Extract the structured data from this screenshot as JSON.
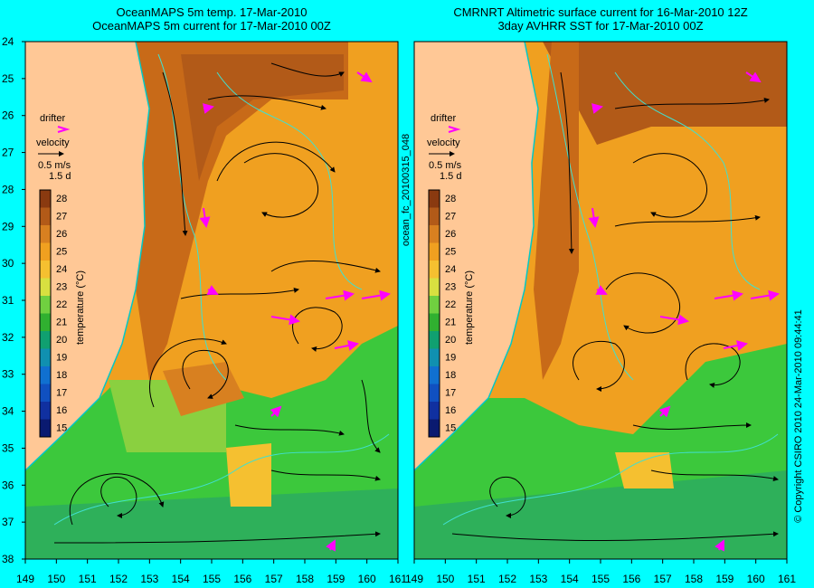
{
  "left_panel": {
    "title_line1": "OceanMAPS 5m temp. 17-Mar-2010",
    "title_line2": "OceanMAPS 5m current for 17-Mar-2010 00Z"
  },
  "right_panel": {
    "title_line1": "CMRNRT Altimetric surface current for 16-Mar-2010 12Z",
    "title_line2": "3day AVHRR SST for 17-Mar-2010 00Z"
  },
  "legend": {
    "drifter_label": "drifter",
    "velocity_label": "velocity",
    "speed_label": "0.5 m/s",
    "duration_label": "1.5 d",
    "colorbar_title": "temperature (°C)",
    "colorbar_ticks": [
      "28",
      "27",
      "26",
      "25",
      "24",
      "23",
      "22",
      "21",
      "20",
      "19",
      "18",
      "17",
      "16",
      "15"
    ],
    "colorbar_colors": [
      "#8a3a10",
      "#b25a18",
      "#d88020",
      "#f0a020",
      "#f5c030",
      "#d8e040",
      "#70d040",
      "#30b030",
      "#10a070",
      "#1090b0",
      "#1070d0",
      "#1050c0",
      "#1030a0",
      "#0a1a70"
    ]
  },
  "axes": {
    "lat_ticks": [
      "24",
      "25",
      "26",
      "27",
      "28",
      "29",
      "30",
      "31",
      "32",
      "33",
      "34",
      "35",
      "36",
      "37",
      "38"
    ],
    "lon_ticks": [
      "149",
      "150",
      "151",
      "152",
      "153",
      "154",
      "155",
      "156",
      "157",
      "158",
      "159",
      "160",
      "161"
    ]
  },
  "side_labels": {
    "file_id": "ocean_fc_20100315_048",
    "copyright": "© Copyright CSIRO 2010   24-Mar-2010 09:44:41"
  },
  "colors": {
    "background": "#00ffff",
    "land": "#ffc896",
    "drifter": "#ff00ff",
    "warm": "#e08a20",
    "cool": "#3cc83c"
  }
}
